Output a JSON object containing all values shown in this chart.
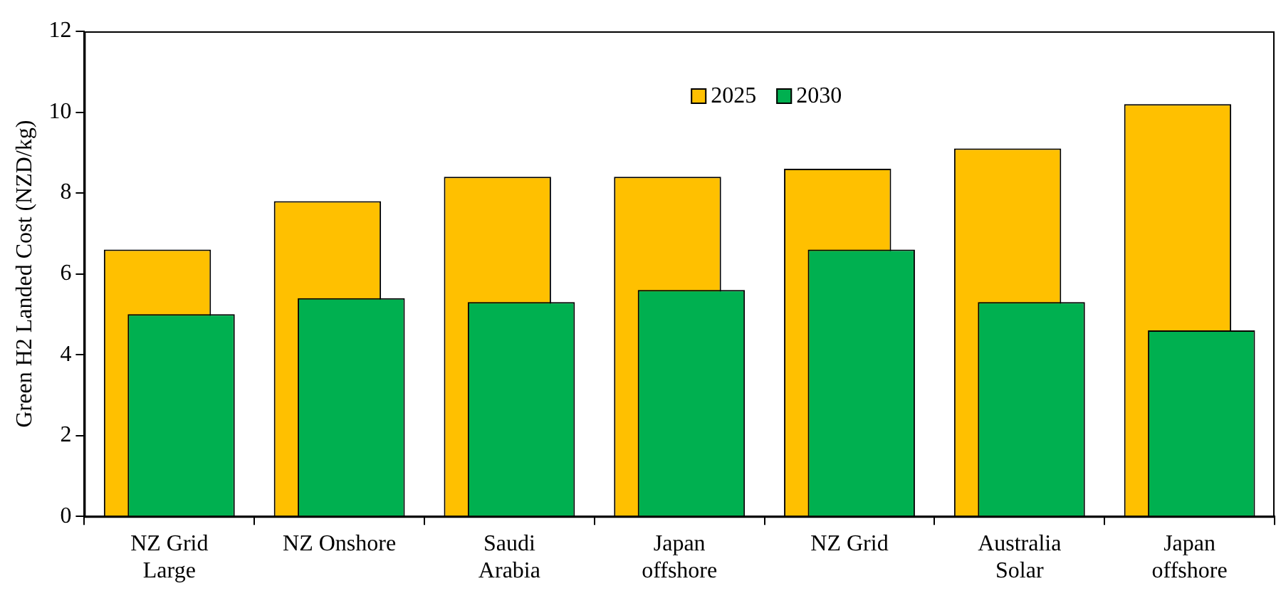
{
  "chart_data": {
    "type": "bar",
    "ylabel": "Green H2 Landed Cost (NZD/kg)",
    "categories": [
      "NZ Grid\nLarge",
      "NZ Onshore",
      "Saudi\nArabia",
      "Japan\noffshore",
      "NZ Grid",
      "Australia\nSolar",
      "Japan\noffshore"
    ],
    "series": [
      {
        "name": "2025",
        "color": "#ffc000",
        "values": [
          6.6,
          7.8,
          8.4,
          8.4,
          8.6,
          9.1,
          10.2
        ]
      },
      {
        "name": "2030",
        "color": "#00b050",
        "values": [
          5.0,
          5.4,
          5.3,
          5.6,
          6.6,
          5.3,
          4.6
        ]
      }
    ],
    "ylim": [
      0,
      12
    ],
    "yticks": [
      0,
      2,
      4,
      6,
      8,
      10,
      12
    ],
    "grid": false,
    "legend": "top"
  }
}
